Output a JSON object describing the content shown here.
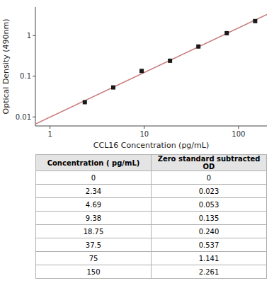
{
  "chart_data": [
    {
      "type": "scatter",
      "xlabel": "CCL16 Concentration (pg/mL)",
      "ylabel": "Optical Density (490nm)",
      "log": true,
      "grid": false,
      "xlim": [
        0.7,
        200
      ],
      "ylim": [
        0.006,
        5
      ],
      "xticks": [
        1,
        10,
        100
      ],
      "yticks": [
        0.01,
        0.1,
        1
      ],
      "series": [
        {
          "type": "line",
          "color": "#c87878",
          "line_style": "solid",
          "x": [
            0.7,
            200
          ],
          "values": [
            0.00669,
            3.299
          ]
        },
        {
          "type": "scatter",
          "color": "#1a1a1a",
          "marker": "square",
          "x": [
            2.34,
            4.69,
            9.38,
            18.75,
            37.5,
            75,
            150
          ],
          "values": [
            0.023,
            0.053,
            0.135,
            0.24,
            0.537,
            1.141,
            2.261
          ]
        }
      ]
    },
    {
      "type": "table",
      "columns": [
        "Concentration ( pg/mL)",
        "Zero standard subtracted OD"
      ],
      "rows": [
        [
          "0",
          "0"
        ],
        [
          "2.34",
          "0.023"
        ],
        [
          "4.69",
          "0.053"
        ],
        [
          "9.38",
          "0.135"
        ],
        [
          "18.75",
          "0.240"
        ],
        [
          "37.5",
          "0.537"
        ],
        [
          "75",
          "1.141"
        ],
        [
          "150",
          "2.261"
        ]
      ]
    }
  ]
}
